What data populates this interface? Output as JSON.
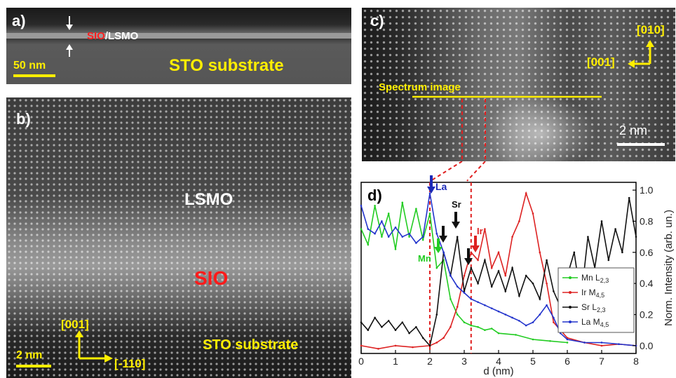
{
  "panel_a": {
    "label": "a)",
    "sio": "SIO",
    "slash_lsmo": "/LSMO",
    "scale": "50 nm",
    "substrate": "STO substrate"
  },
  "panel_b": {
    "label": "b)",
    "lsmo": "LSMO",
    "sio": "SIO",
    "substrate": "STO substrate",
    "axis_up": "[001]",
    "axis_right": "[-110]",
    "scale": "2 nm"
  },
  "panel_c": {
    "label": "c)",
    "spectrum": "Spectrum image",
    "axis_up": "[010]",
    "axis_left": "[001]",
    "scale": "2 nm"
  },
  "panel_d": {
    "label": "d)",
    "arrow_la": "La",
    "arrow_sr": "Sr",
    "arrow_ir": "Ir",
    "arrow_mn": "Mn"
  },
  "chart_data": {
    "type": "line",
    "xlabel": "d (nm)",
    "ylabel": "Norm. Intensity (arb. un.)",
    "xlim": [
      0,
      8
    ],
    "ylim": [
      -0.05,
      1.05
    ],
    "xticks": [
      "0",
      "1",
      "2",
      "3",
      "4",
      "5",
      "6",
      "7",
      "8"
    ],
    "yticks": [
      "0.0",
      "0.2",
      "0.4",
      "0.6",
      "0.8",
      "1.0"
    ],
    "legend_position": "bottom-right",
    "vlines": [
      2.0,
      3.2
    ],
    "series": [
      {
        "name": "Mn L2,3",
        "name_main": "Mn L",
        "name_sub": "2,3",
        "color": "#22cc22",
        "x": [
          0,
          0.2,
          0.4,
          0.6,
          0.8,
          1.0,
          1.2,
          1.4,
          1.6,
          1.8,
          2.0,
          2.2,
          2.4,
          2.6,
          2.8,
          3.0,
          3.2,
          3.4,
          3.6,
          3.8,
          4.0,
          4.5,
          5.0,
          5.5,
          6.0
        ],
        "y": [
          0.75,
          0.65,
          0.9,
          0.7,
          0.85,
          0.62,
          0.92,
          0.7,
          0.88,
          0.68,
          0.85,
          0.5,
          0.55,
          0.3,
          0.2,
          0.15,
          0.13,
          0.12,
          0.1,
          0.11,
          0.08,
          0.07,
          0.04,
          0.03,
          0.02
        ]
      },
      {
        "name": "Ir M4,5",
        "name_main": "Ir M",
        "name_sub": "4,5",
        "color": "#dd2222",
        "x": [
          0,
          0.5,
          1.0,
          1.5,
          2.0,
          2.2,
          2.4,
          2.6,
          2.8,
          3.0,
          3.2,
          3.4,
          3.6,
          3.8,
          4.0,
          4.2,
          4.4,
          4.6,
          4.8,
          5.0,
          5.2,
          5.4,
          5.6,
          6.0,
          6.5,
          7.0,
          7.5,
          8.0
        ],
        "y": [
          0.0,
          -0.02,
          0.0,
          -0.01,
          0.0,
          0.02,
          0.05,
          0.12,
          0.25,
          0.45,
          0.6,
          0.55,
          0.75,
          0.5,
          0.6,
          0.45,
          0.7,
          0.8,
          0.98,
          0.85,
          0.6,
          0.4,
          0.15,
          0.05,
          0.02,
          0.0,
          0.01,
          0.0
        ]
      },
      {
        "name": "Sr L2,3",
        "name_main": "Sr L",
        "name_sub": "2,3",
        "color": "#111111",
        "x": [
          0,
          0.2,
          0.4,
          0.6,
          0.8,
          1.0,
          1.2,
          1.4,
          1.6,
          1.8,
          2.0,
          2.2,
          2.4,
          2.6,
          2.8,
          3.0,
          3.2,
          3.4,
          3.6,
          3.8,
          4.0,
          4.2,
          4.4,
          4.6,
          4.8,
          5.0,
          5.2,
          5.4,
          5.6,
          5.8,
          6.0,
          6.2,
          6.4,
          6.6,
          6.8,
          7.0,
          7.2,
          7.4,
          7.6,
          7.8,
          8.0
        ],
        "y": [
          0.15,
          0.1,
          0.18,
          0.12,
          0.16,
          0.1,
          0.15,
          0.08,
          0.12,
          0.05,
          0.0,
          0.2,
          0.6,
          0.45,
          0.7,
          0.35,
          0.5,
          0.4,
          0.55,
          0.38,
          0.48,
          0.35,
          0.5,
          0.32,
          0.45,
          0.4,
          0.3,
          0.55,
          0.35,
          0.25,
          0.45,
          0.6,
          0.3,
          0.7,
          0.5,
          0.8,
          0.55,
          0.75,
          0.6,
          0.95,
          0.7
        ]
      },
      {
        "name": "La M4,5",
        "name_main": "La M",
        "name_sub": "4,5",
        "color": "#2233cc",
        "x": [
          0,
          0.2,
          0.4,
          0.6,
          0.8,
          1.0,
          1.2,
          1.4,
          1.6,
          1.8,
          2.0,
          2.2,
          2.4,
          2.6,
          2.8,
          3.0,
          3.2,
          3.4,
          3.6,
          3.8,
          4.0,
          4.2,
          4.4,
          4.6,
          4.8,
          5.0,
          5.2,
          5.4,
          5.6,
          5.8,
          6.0,
          6.5,
          7.0,
          7.5,
          8.0
        ],
        "y": [
          0.9,
          0.75,
          0.72,
          0.8,
          0.7,
          0.76,
          0.7,
          0.72,
          0.66,
          0.7,
          0.98,
          0.72,
          0.6,
          0.45,
          0.38,
          0.34,
          0.3,
          0.28,
          0.26,
          0.24,
          0.22,
          0.2,
          0.18,
          0.16,
          0.13,
          0.15,
          0.2,
          0.26,
          0.18,
          0.08,
          0.04,
          0.02,
          0.02,
          0.01,
          0.0
        ]
      }
    ]
  }
}
